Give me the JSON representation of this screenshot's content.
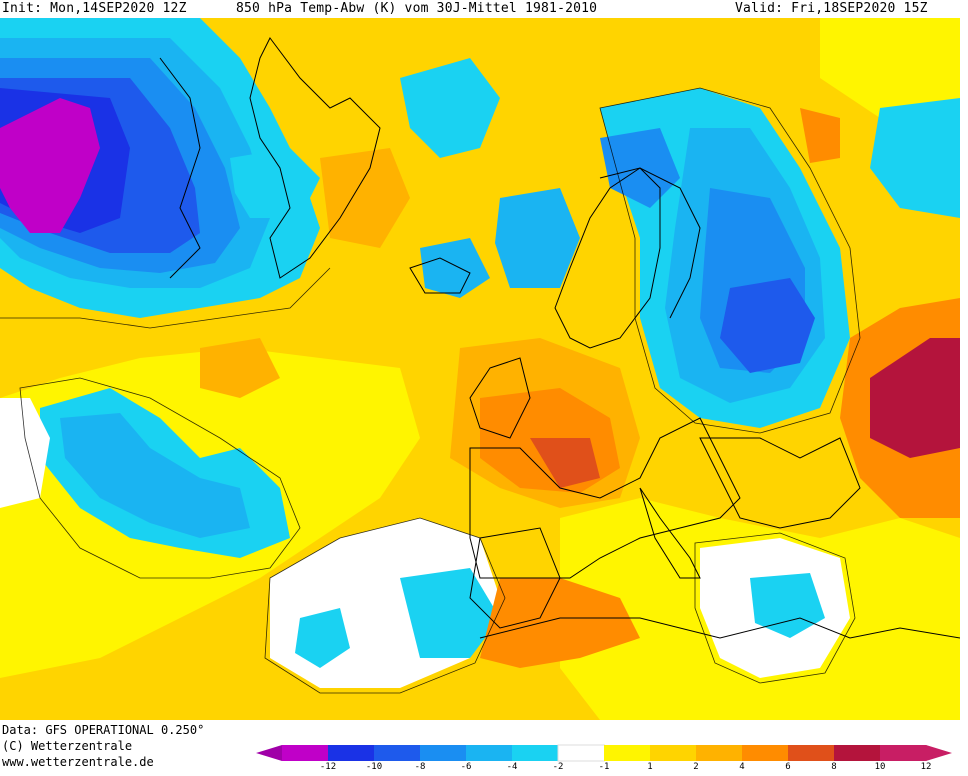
{
  "header": {
    "init": "Init: Mon,14SEP2020 12Z",
    "title": "850 hPa Temp-Abw (K) vom 30J-Mittel 1981-2010",
    "valid": "Valid: Fri,18SEP2020 15Z"
  },
  "footer": {
    "data_source": "Data: GFS OPERATIONAL 0.250°",
    "copyright": "(C) Wetterzentrale",
    "website": "www.wetterzentrale.de"
  },
  "legend": {
    "labels": [
      "-12",
      "-10",
      "-8",
      "-6",
      "-4",
      "-2",
      "-1",
      "1",
      "2",
      "4",
      "6",
      "8",
      "10",
      "12"
    ],
    "colors": [
      "#c000c8",
      "#1a32e6",
      "#1e5aec",
      "#1a8ef2",
      "#1ab4f2",
      "#1ad2f2",
      "#ffffff",
      "#fff500",
      "#ffd400",
      "#ffb200",
      "#ff8c00",
      "#e0501a",
      "#b4143c",
      "#c81e64"
    ],
    "arrow_left_color": "#a000a8",
    "arrow_right_color": "#c81e64"
  },
  "map_colors": {
    "background_anomaly": "#ffd400",
    "strong_cold": "#c000c8",
    "cold_blue": "#1a32e6",
    "mid_blue": "#1e5aec",
    "light_blue": "#1a8ef2",
    "cyan": "#1ad2f2",
    "neutral": "#ffffff",
    "warm_yellow": "#fff500",
    "warm_orange": "#ffb200",
    "hot_orange": "#ff8c00",
    "very_hot": "#e0501a",
    "extreme": "#b4143c"
  }
}
